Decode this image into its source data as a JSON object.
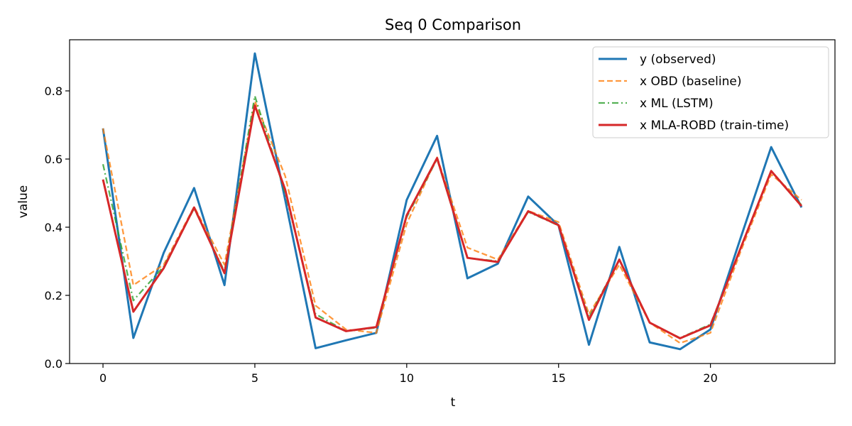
{
  "chart_data": {
    "type": "line",
    "title": "Seq 0 Comparison",
    "xlabel": "t",
    "ylabel": "value",
    "xlim": [
      -1.1,
      24.1
    ],
    "ylim": [
      0.0,
      0.95
    ],
    "xticks": [
      0,
      5,
      10,
      15,
      20
    ],
    "yticks": [
      0.0,
      0.2,
      0.4,
      0.6,
      0.8
    ],
    "grid": false,
    "legend_position": "top-right",
    "x": [
      0,
      1,
      2,
      3,
      4,
      5,
      6,
      7,
      8,
      9,
      10,
      11,
      12,
      13,
      14,
      15,
      16,
      17,
      18,
      19,
      20,
      21,
      22,
      23
    ],
    "series": [
      {
        "name": "y (observed)",
        "color": "#1f77b4",
        "style": "solid",
        "values": [
          0.69,
          0.075,
          0.325,
          0.515,
          0.23,
          0.91,
          0.48,
          0.045,
          0.068,
          0.09,
          0.48,
          0.668,
          0.25,
          0.293,
          0.49,
          0.405,
          0.055,
          0.342,
          0.062,
          0.042,
          0.1,
          0.37,
          0.635,
          0.458
        ]
      },
      {
        "name": "x OBD (baseline)",
        "color": "#ff7f0e",
        "style": "dashed",
        "values": [
          0.69,
          0.23,
          0.29,
          0.46,
          0.29,
          0.77,
          0.55,
          0.17,
          0.1,
          0.09,
          0.41,
          0.605,
          0.34,
          0.305,
          0.448,
          0.415,
          0.145,
          0.29,
          0.12,
          0.06,
          0.09,
          0.33,
          0.555,
          0.48
        ]
      },
      {
        "name": "x ML (LSTM)",
        "color": "#2ca02c",
        "style": "dashdot",
        "values": [
          0.585,
          0.185,
          0.285,
          0.455,
          0.27,
          0.785,
          0.5,
          0.145,
          0.095,
          0.105,
          0.43,
          0.6,
          0.31,
          0.3,
          0.445,
          0.405,
          0.135,
          0.305,
          0.12,
          0.075,
          0.115,
          0.34,
          0.565,
          0.465
        ]
      },
      {
        "name": "x MLA-ROBD (train-time)",
        "color": "#d62728",
        "style": "solid",
        "values": [
          0.54,
          0.152,
          0.28,
          0.458,
          0.265,
          0.757,
          0.51,
          0.135,
          0.095,
          0.107,
          0.435,
          0.603,
          0.31,
          0.298,
          0.447,
          0.406,
          0.128,
          0.305,
          0.12,
          0.074,
          0.112,
          0.34,
          0.565,
          0.462
        ]
      }
    ]
  }
}
